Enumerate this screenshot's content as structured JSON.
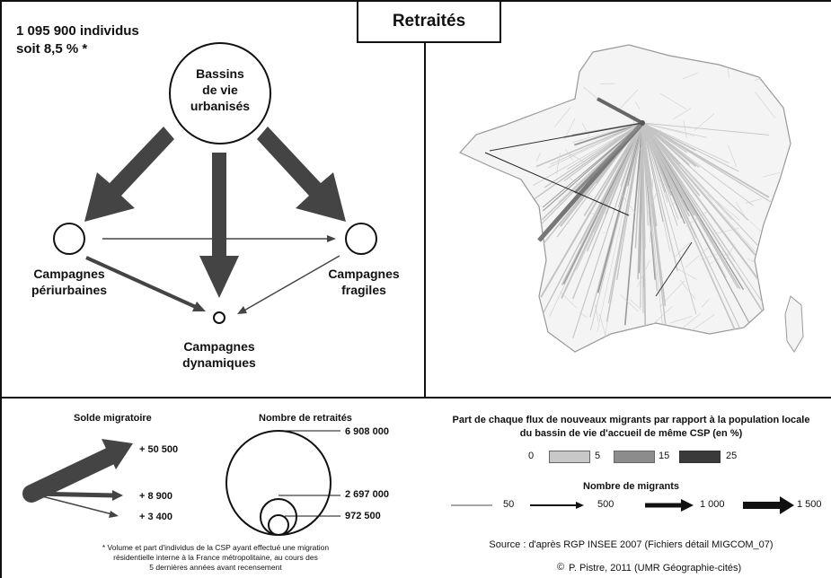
{
  "header": {
    "count_line1": "1 095 900 individus",
    "count_line2": "soit 8,5 % *",
    "title": "Retraités"
  },
  "diagram": {
    "center": [
      "Bassins",
      "de vie",
      "urbanisés"
    ],
    "periurban": [
      "Campagnes",
      "périurbaines"
    ],
    "fragile": [
      "Campagnes",
      "fragiles"
    ],
    "dynamic": [
      "Campagnes",
      "dynamiques"
    ]
  },
  "legend_solde": {
    "title": "Solde migratoire",
    "values": [
      "+ 50 500",
      "+ 8 900",
      "+ 3 400"
    ]
  },
  "legend_nombre": {
    "title": "Nombre de retraités",
    "values": [
      "6 908 000",
      "2 697 000",
      "972 500"
    ]
  },
  "legend_part": {
    "title_line1": "Part de chaque flux de nouveaux migrants par rapport à la population locale",
    "title_line2": "du bassin de vie d'accueil de même CSP (en %)",
    "scale": [
      "0",
      "5",
      "15",
      "25"
    ],
    "colors": [
      "#c8c8c8",
      "#8c8c8c",
      "#3a3a3a"
    ]
  },
  "legend_migrants": {
    "title": "Nombre de migrants",
    "values": [
      "50",
      "500",
      "1 000",
      "1 500"
    ]
  },
  "footnote": [
    "* Volume et part d'individus de la CSP ayant effectué une migration",
    "résidentielle interne à la France métropolitaine, au cours des",
    "5 dernières années avant recensement"
  ],
  "source": "Source : d'après RGP INSEE 2007 (Fichiers détail MIGCOM_07)",
  "credit": "P. Pistre, 2011 (UMR Géographie-cités)"
}
